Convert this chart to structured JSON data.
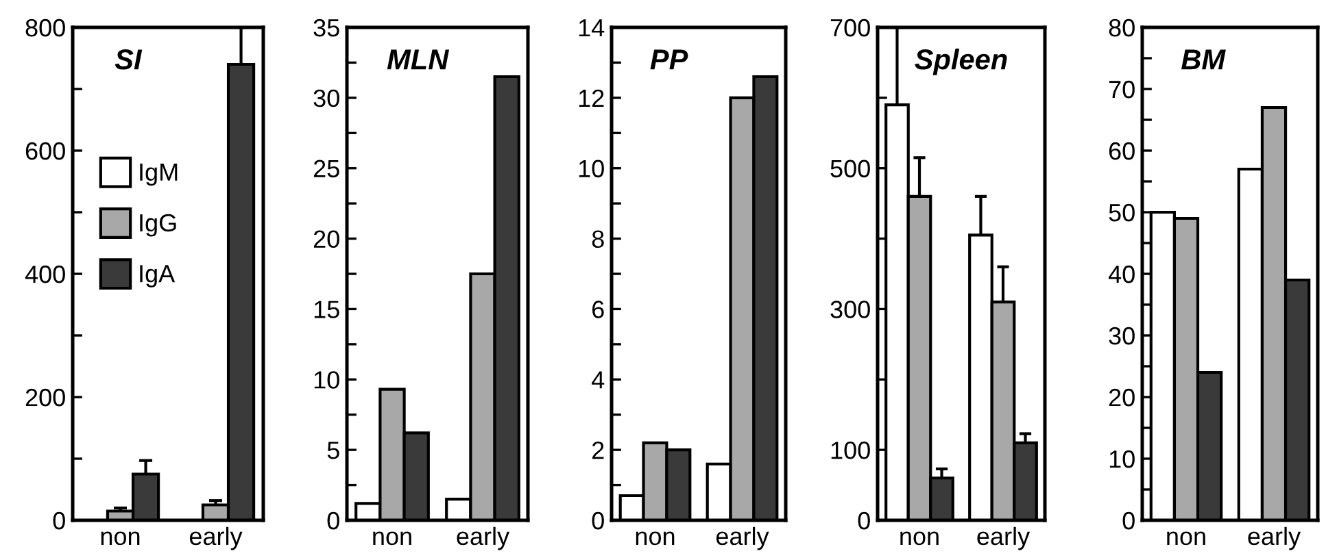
{
  "chart_data": [
    {
      "type": "bar",
      "title": "SI",
      "categories": [
        "non",
        "early"
      ],
      "legend": "top left",
      "grid": false,
      "ylim": [
        0,
        800
      ],
      "yticks": [
        0,
        {
          "value": 100,
          "label": null
        },
        200,
        {
          "value": 300,
          "label": null
        },
        400,
        {
          "value": 500,
          "label": null
        },
        600,
        {
          "value": 700,
          "label": null
        },
        800
      ],
      "series": [
        {
          "name": "IgM",
          "color": "#ffffff",
          "values": [
            null,
            null
          ]
        },
        {
          "name": "IgG",
          "color": "#a8a8a8",
          "values": [
            15,
            25
          ],
          "errors": [
            [
              15,
              20
            ],
            [
              25,
              32
            ]
          ]
        },
        {
          "name": "IgA",
          "color": "#3a3a3a",
          "values": [
            75,
            740
          ],
          "errors": [
            [
              75,
              97
            ],
            [
              740,
              800
            ]
          ]
        }
      ]
    },
    {
      "type": "bar",
      "title": "MLN",
      "categories": [
        "non",
        "early"
      ],
      "grid": false,
      "ylim": [
        0,
        35
      ],
      "yticks": [
        0,
        {
          "value": 2.5,
          "label": null
        },
        5,
        {
          "value": 7.5,
          "label": null
        },
        10,
        {
          "value": 12.5,
          "label": null
        },
        15,
        {
          "value": 17.5,
          "label": null
        },
        20,
        {
          "value": 22.5,
          "label": null
        },
        25,
        {
          "value": 27.5,
          "label": null
        },
        30,
        {
          "value": 32.5,
          "label": null
        },
        35
      ],
      "series": [
        {
          "color": "#ffffff",
          "values": [
            1.2,
            1.5
          ]
        },
        {
          "color": "#a8a8a8",
          "values": [
            9.3,
            17.5
          ]
        },
        {
          "color": "#3a3a3a",
          "values": [
            6.2,
            31.5
          ]
        }
      ]
    },
    {
      "type": "bar",
      "title": "PP",
      "categories": [
        "non",
        "early"
      ],
      "grid": false,
      "ylim": [
        0,
        14
      ],
      "yticks": [
        0,
        {
          "value": 1,
          "label": null
        },
        2,
        {
          "value": 3,
          "label": null
        },
        4,
        {
          "value": 5,
          "label": null
        },
        6,
        {
          "value": 7,
          "label": null
        },
        8,
        {
          "value": 9,
          "label": null
        },
        10,
        {
          "value": 11,
          "label": null
        },
        12,
        {
          "value": 13,
          "label": null
        },
        14
      ],
      "series": [
        {
          "color": "#ffffff",
          "values": [
            0.7,
            1.6
          ]
        },
        {
          "color": "#a8a8a8",
          "values": [
            2.2,
            12.0
          ]
        },
        {
          "color": "#3a3a3a",
          "values": [
            2.0,
            12.6
          ]
        }
      ]
    },
    {
      "type": "bar",
      "title": "Spleen",
      "categories": [
        "non",
        "early"
      ],
      "grid": false,
      "ylim": [
        0,
        700
      ],
      "yticks": [
        0,
        100,
        {
          "value": 200,
          "label": null
        },
        300,
        {
          "value": 400,
          "label": null
        },
        500,
        {
          "value": 600,
          "label": null
        },
        700
      ],
      "series": [
        {
          "color": "#ffffff",
          "values": [
            590,
            405
          ],
          "errors": [
            [
              590,
              700
            ],
            [
              405,
              460
            ]
          ]
        },
        {
          "color": "#a8a8a8",
          "values": [
            460,
            310
          ],
          "errors": [
            [
              460,
              515
            ],
            [
              310,
              360
            ]
          ]
        },
        {
          "color": "#3a3a3a",
          "values": [
            60,
            110
          ],
          "errors": [
            [
              60,
              73
            ],
            [
              110,
              123
            ]
          ]
        }
      ]
    },
    {
      "type": "bar",
      "title": "BM",
      "categories": [
        "non",
        "early"
      ],
      "grid": false,
      "ylim": [
        0,
        80
      ],
      "yticks": [
        0,
        {
          "value": 5,
          "label": null
        },
        10,
        {
          "value": 15,
          "label": null
        },
        20,
        {
          "value": 25,
          "label": null
        },
        30,
        {
          "value": 35,
          "label": null
        },
        40,
        {
          "value": 45,
          "label": null
        },
        50,
        {
          "value": 55,
          "label": null
        },
        60,
        {
          "value": 65,
          "label": null
        },
        70,
        {
          "value": 75,
          "label": null
        },
        80
      ],
      "series": [
        {
          "color": "#ffffff",
          "values": [
            50,
            57
          ]
        },
        {
          "color": "#a8a8a8",
          "values": [
            49,
            67
          ]
        },
        {
          "color": "#3a3a3a",
          "values": [
            24,
            39
          ]
        }
      ]
    }
  ]
}
